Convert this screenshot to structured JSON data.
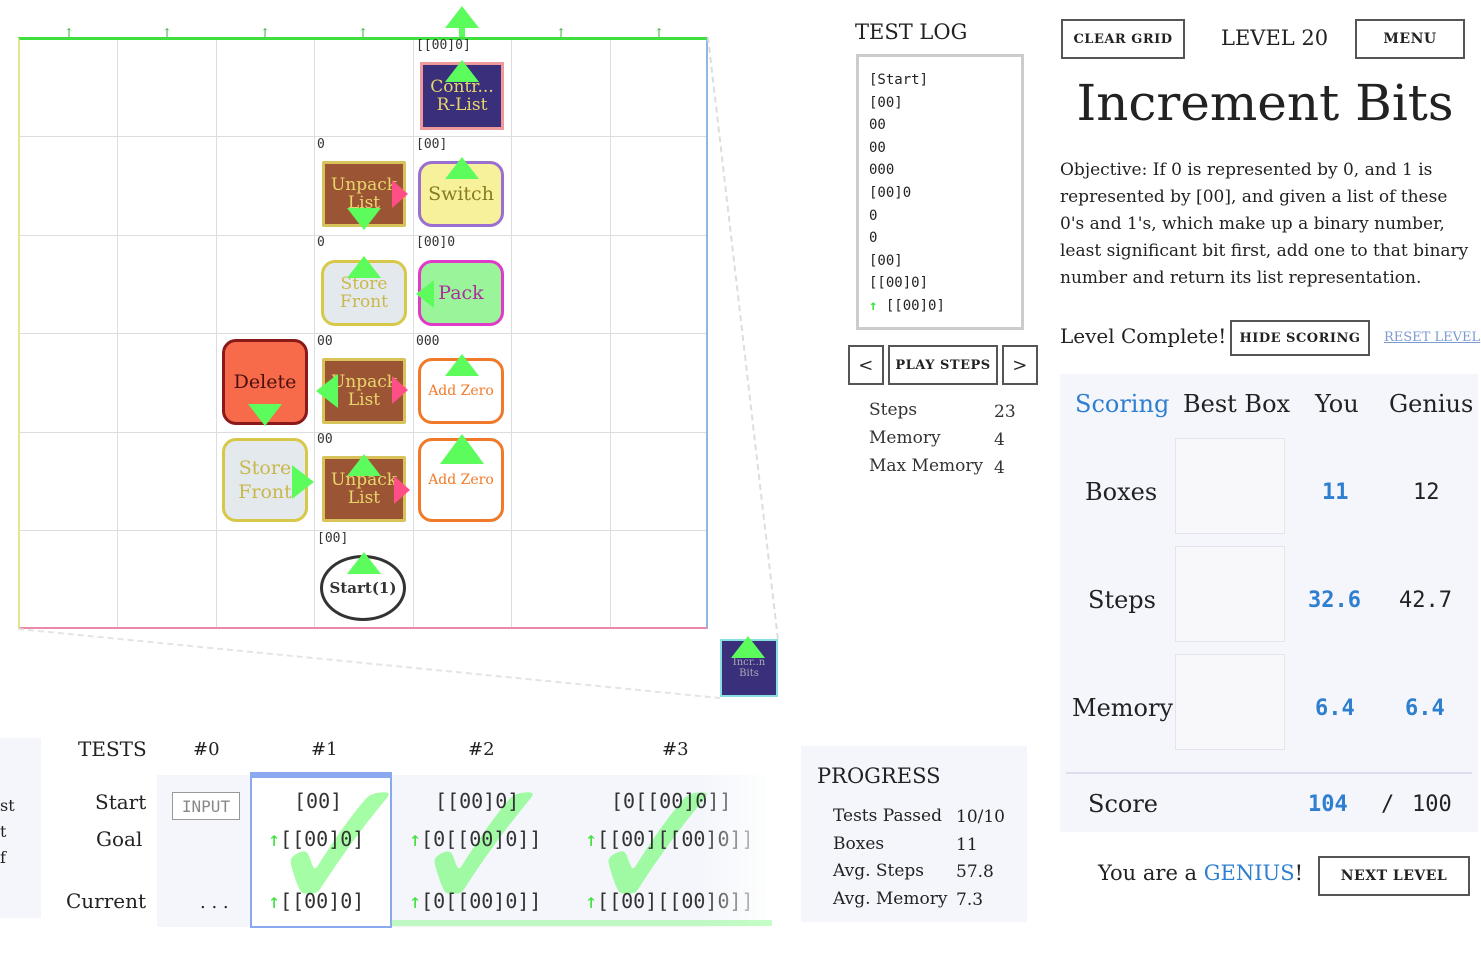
{
  "grid": {
    "labels": {
      "r0c4": "[[00]0]",
      "r1c3": "0",
      "r1c4": "[00]",
      "r2c3": "0",
      "r2c4": "[00]0",
      "r3c3": "00",
      "r3c4": "000",
      "r4c3": "00",
      "r5c3": "[00]"
    },
    "boxes": {
      "contract": "Contr...\nR-List",
      "unpack1": "Unpack\nList",
      "switch": "Switch",
      "store1": "Store\nFront",
      "pack": "Pack",
      "delete": "Delete",
      "unpack2": "Unpack\nList",
      "addzero1": "Add Zero",
      "store2": "Store\nFront",
      "unpack3": "Unpack\nList",
      "addzero2": "Add Zero",
      "start": "Start(1)",
      "output": "Incr..n\nBits"
    },
    "arrow_badge": "1"
  },
  "log": {
    "title": "TEST LOG",
    "lines": [
      "[Start]",
      "[00]",
      "00",
      "00",
      "000",
      "[00]0",
      "0",
      "0",
      "[00]",
      "[[00]0]",
      "[[00]0]"
    ]
  },
  "controls": {
    "prev": "<",
    "play": "PLAY STEPS",
    "next": ">"
  },
  "stats": {
    "steps_label": "Steps",
    "steps": "23",
    "memory_label": "Memory",
    "memory": "4",
    "maxmem_label": "Max Memory",
    "maxmem": "4"
  },
  "header": {
    "clear": "CLEAR GRID",
    "level": "LEVEL 20",
    "menu": "MENU",
    "title": "Increment Bits",
    "objective": "Objective: If 0 is represented by 0, and 1 is represented by [00], and given a list of these 0's and 1's, which make up a binary number, least significant bit first, add one to that binary number and return its list representation.",
    "complete": "Level Complete!",
    "hide_scoring": "HIDE SCORING",
    "reset": "RESET LEVEL"
  },
  "scoring": {
    "title": "Scoring",
    "col_best": "Best Box",
    "col_you": "You",
    "col_genius": "Genius",
    "rows": [
      {
        "label": "Boxes",
        "you": "11",
        "genius": "12"
      },
      {
        "label": "Steps",
        "you": "32.6",
        "genius": "42.7"
      },
      {
        "label": "Memory",
        "you": "6.4",
        "genius": "6.4"
      }
    ],
    "score_label": "Score",
    "score_you": "104",
    "score_sep": "/",
    "score_max": "100",
    "genius_prefix": "You are a ",
    "genius_word": "GENIUS",
    "genius_suffix": "!",
    "next": "NEXT LEVEL",
    "accent": "#2f7fd0"
  },
  "tests": {
    "title": "TESTS",
    "row_start": "Start",
    "row_goal": "Goal",
    "row_current": "Current",
    "input_btn": "INPUT",
    "ellipsis": ". . .",
    "cols": [
      {
        "label": "#0"
      },
      {
        "label": "#1",
        "start": "[00]",
        "goal": "[[00]0]",
        "current": "[[00]0]"
      },
      {
        "label": "#2",
        "start": "[[00]0]",
        "goal": "[0[[00]0]]",
        "current": "[0[[00]0]]"
      },
      {
        "label": "#3",
        "start": "[0[[00]0]]",
        "goal": "[[00][[00]0]]",
        "current": "[[00][[00]0]]"
      }
    ],
    "left_partial": [
      "st",
      "t",
      "f"
    ]
  },
  "progress": {
    "title": "PROGRESS",
    "rows": [
      {
        "label": "Tests Passed",
        "value": "10/10"
      },
      {
        "label": "Boxes",
        "value": "11"
      },
      {
        "label": "Avg. Steps",
        "value": "57.8"
      },
      {
        "label": "Avg. Memory",
        "value": "7.3"
      }
    ]
  }
}
